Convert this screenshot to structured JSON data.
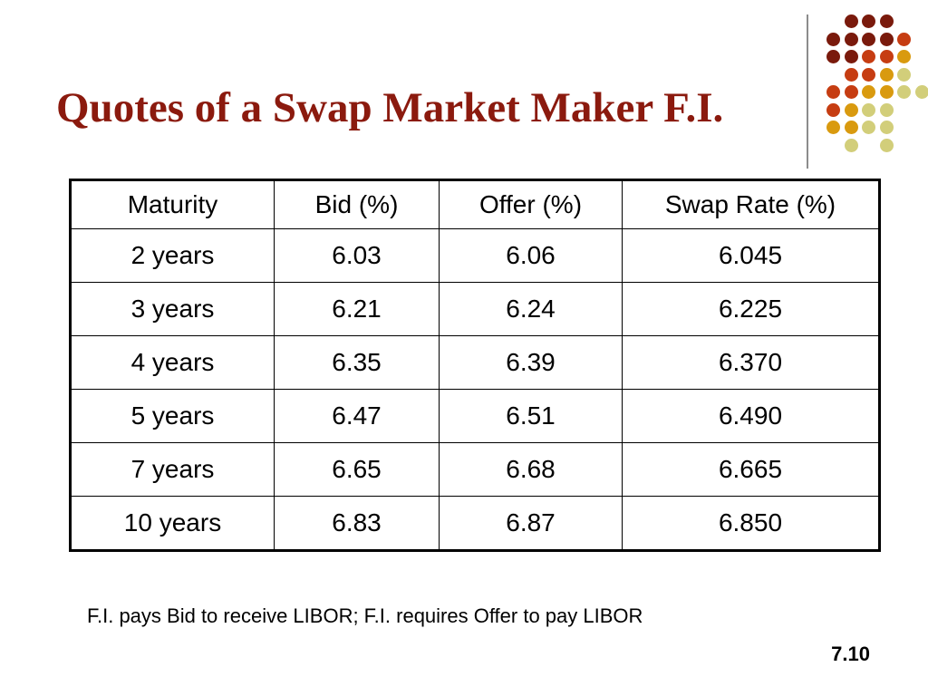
{
  "slide": {
    "title": "Quotes of a Swap Market Maker F.I.",
    "footnote": "F.I. pays Bid to receive LIBOR; F.I. requires Offer to pay LIBOR",
    "page_number": "7.10"
  },
  "table": {
    "headers": [
      "Maturity",
      "Bid (%)",
      "Offer (%)",
      "Swap Rate (%)"
    ],
    "rows": [
      [
        "2 years",
        "6.03",
        "6.06",
        "6.045"
      ],
      [
        "3 years",
        "6.21",
        "6.24",
        "6.225"
      ],
      [
        "4 years",
        "6.35",
        "6.39",
        "6.370"
      ],
      [
        "5 years",
        "6.47",
        "6.51",
        "6.490"
      ],
      [
        "7 years",
        "6.65",
        "6.68",
        "6.665"
      ],
      [
        "10 years",
        "6.83",
        "6.87",
        "6.850"
      ]
    ]
  },
  "theme": {
    "title_color": "#8b1a0e",
    "dot_colors": [
      "#7a1a0c",
      "#c63d12",
      "#d99a0f",
      "#d2ce7a"
    ]
  }
}
